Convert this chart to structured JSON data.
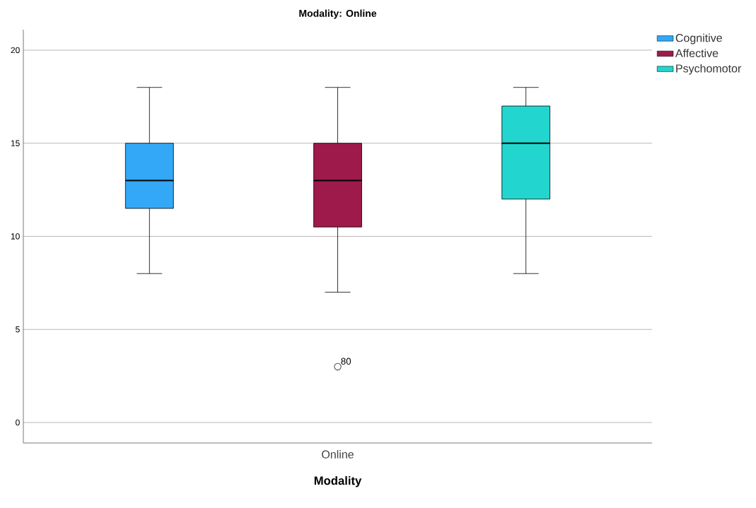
{
  "chart_data": {
    "type": "box",
    "title": "Modality: Online",
    "xlabel": "Modality",
    "categories": [
      "Online"
    ],
    "series": [
      {
        "name": "Cognitive",
        "color": "#33a8f7",
        "boxes": [
          {
            "low": 8,
            "q1": 11.5,
            "median": 13,
            "q3": 15,
            "high": 18
          }
        ]
      },
      {
        "name": "Affective",
        "color": "#9e1a4a",
        "boxes": [
          {
            "low": 7,
            "q1": 10.5,
            "median": 13,
            "q3": 15,
            "high": 18,
            "outliers": [
              3
            ]
          }
        ]
      },
      {
        "name": "Psychomotor",
        "color": "#22d6cf",
        "boxes": [
          {
            "low": 8,
            "q1": 12,
            "median": 15,
            "q3": 17,
            "high": 18
          }
        ]
      }
    ],
    "annotations": [
      "80"
    ],
    "ylim": [
      -1.1,
      21.1
    ],
    "yticks": [
      0,
      5,
      10,
      15,
      20
    ],
    "grid": "y",
    "legend": "top right"
  }
}
